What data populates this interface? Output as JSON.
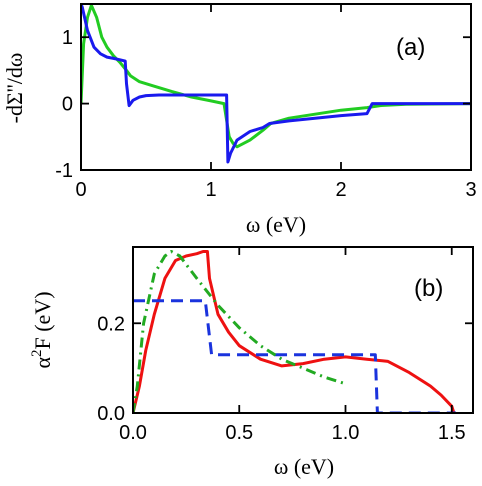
{
  "chart_data": [
    {
      "panel": "(a)",
      "type": "line",
      "xlabel": "ω (eV)",
      "ylabel": "-dΣ''/dω",
      "xlim": [
        0,
        3
      ],
      "ylim": [
        -1,
        1.5
      ],
      "xticks": [
        "0",
        "1",
        "2",
        "3"
      ],
      "yticks": [
        "-1",
        "0",
        "1"
      ],
      "xtick_values": [
        0,
        1,
        2,
        3
      ],
      "ytick_values": [
        -1,
        0,
        1
      ],
      "series": [
        {
          "color": "#22cc22",
          "style": "solid",
          "x": [
            0.0,
            0.02,
            0.05,
            0.08,
            0.12,
            0.16,
            0.2,
            0.25,
            0.3,
            0.35,
            0.38,
            0.45,
            0.55,
            0.7,
            0.85,
            1.0,
            1.1,
            1.14,
            1.17,
            1.2,
            1.3,
            1.4,
            1.46,
            1.6,
            1.8,
            2.0,
            2.2,
            2.3,
            2.5,
            3.0
          ],
          "y": [
            0.0,
            0.9,
            1.3,
            1.48,
            1.3,
            1.0,
            0.85,
            0.72,
            0.62,
            0.5,
            0.42,
            0.33,
            0.27,
            0.18,
            0.1,
            0.04,
            0.0,
            -0.5,
            -0.6,
            -0.65,
            -0.55,
            -0.4,
            -0.3,
            -0.22,
            -0.16,
            -0.1,
            -0.06,
            -0.03,
            -0.01,
            0.0
          ]
        },
        {
          "color": "#1a1aee",
          "style": "solid",
          "x": [
            0.0,
            0.01,
            0.05,
            0.1,
            0.15,
            0.2,
            0.25,
            0.3,
            0.34,
            0.35,
            0.37,
            0.4,
            0.45,
            0.5,
            0.6,
            0.8,
            1.0,
            1.12,
            1.13,
            1.15,
            1.2,
            1.3,
            1.4,
            1.45,
            1.6,
            1.8,
            2.0,
            2.2,
            2.24,
            2.26,
            2.5,
            3.0
          ],
          "y": [
            1.5,
            1.45,
            1.1,
            0.85,
            0.75,
            0.7,
            0.68,
            0.66,
            0.64,
            0.3,
            -0.03,
            0.05,
            0.1,
            0.12,
            0.13,
            0.13,
            0.13,
            0.13,
            -0.88,
            -0.75,
            -0.55,
            -0.42,
            -0.36,
            -0.3,
            -0.26,
            -0.22,
            -0.18,
            -0.15,
            0.0,
            0.0,
            0.0,
            0.0
          ]
        }
      ]
    },
    {
      "panel": "(b)",
      "type": "line",
      "xlabel": "ω (eV)",
      "ylabel": "α²F (eV)",
      "ylabel_base": "α",
      "ylabel_sup": "2",
      "ylabel_rest": "F (eV)",
      "xlim": [
        0,
        1.6
      ],
      "ylim": [
        0,
        0.37
      ],
      "xticks": [
        "0.0",
        "0.5",
        "1.0",
        "1.5"
      ],
      "yticks": [
        "0.0",
        "0.2"
      ],
      "xtick_values": [
        0,
        0.5,
        1.0,
        1.5
      ],
      "ytick_values": [
        0,
        0.2
      ],
      "series": [
        {
          "color": "#ee1111",
          "style": "solid",
          "x": [
            0.0,
            0.03,
            0.06,
            0.1,
            0.15,
            0.2,
            0.25,
            0.3,
            0.33,
            0.35,
            0.36,
            0.4,
            0.45,
            0.5,
            0.6,
            0.7,
            0.8,
            0.9,
            1.0,
            1.1,
            1.2,
            1.3,
            1.4,
            1.45,
            1.5,
            1.51,
            1.52
          ],
          "y": [
            0.0,
            0.06,
            0.14,
            0.22,
            0.3,
            0.34,
            0.35,
            0.355,
            0.36,
            0.36,
            0.3,
            0.22,
            0.18,
            0.15,
            0.12,
            0.105,
            0.11,
            0.12,
            0.125,
            0.12,
            0.115,
            0.09,
            0.06,
            0.04,
            0.015,
            0.0,
            0.0
          ]
        },
        {
          "color": "#1a33dd",
          "style": "dashed",
          "x": [
            0.0,
            0.34,
            0.37,
            1.14,
            1.15,
            1.52
          ],
          "y": [
            0.25,
            0.25,
            0.13,
            0.13,
            0.0,
            0.0
          ]
        },
        {
          "color": "#22aa22",
          "style": "dashdot",
          "x": [
            0.0,
            0.02,
            0.05,
            0.1,
            0.15,
            0.18,
            0.22,
            0.3,
            0.4,
            0.5,
            0.6,
            0.7,
            0.8,
            0.9,
            1.0
          ],
          "y": [
            0.0,
            0.06,
            0.2,
            0.31,
            0.35,
            0.36,
            0.35,
            0.3,
            0.24,
            0.19,
            0.15,
            0.12,
            0.1,
            0.08,
            0.065
          ]
        }
      ]
    }
  ]
}
